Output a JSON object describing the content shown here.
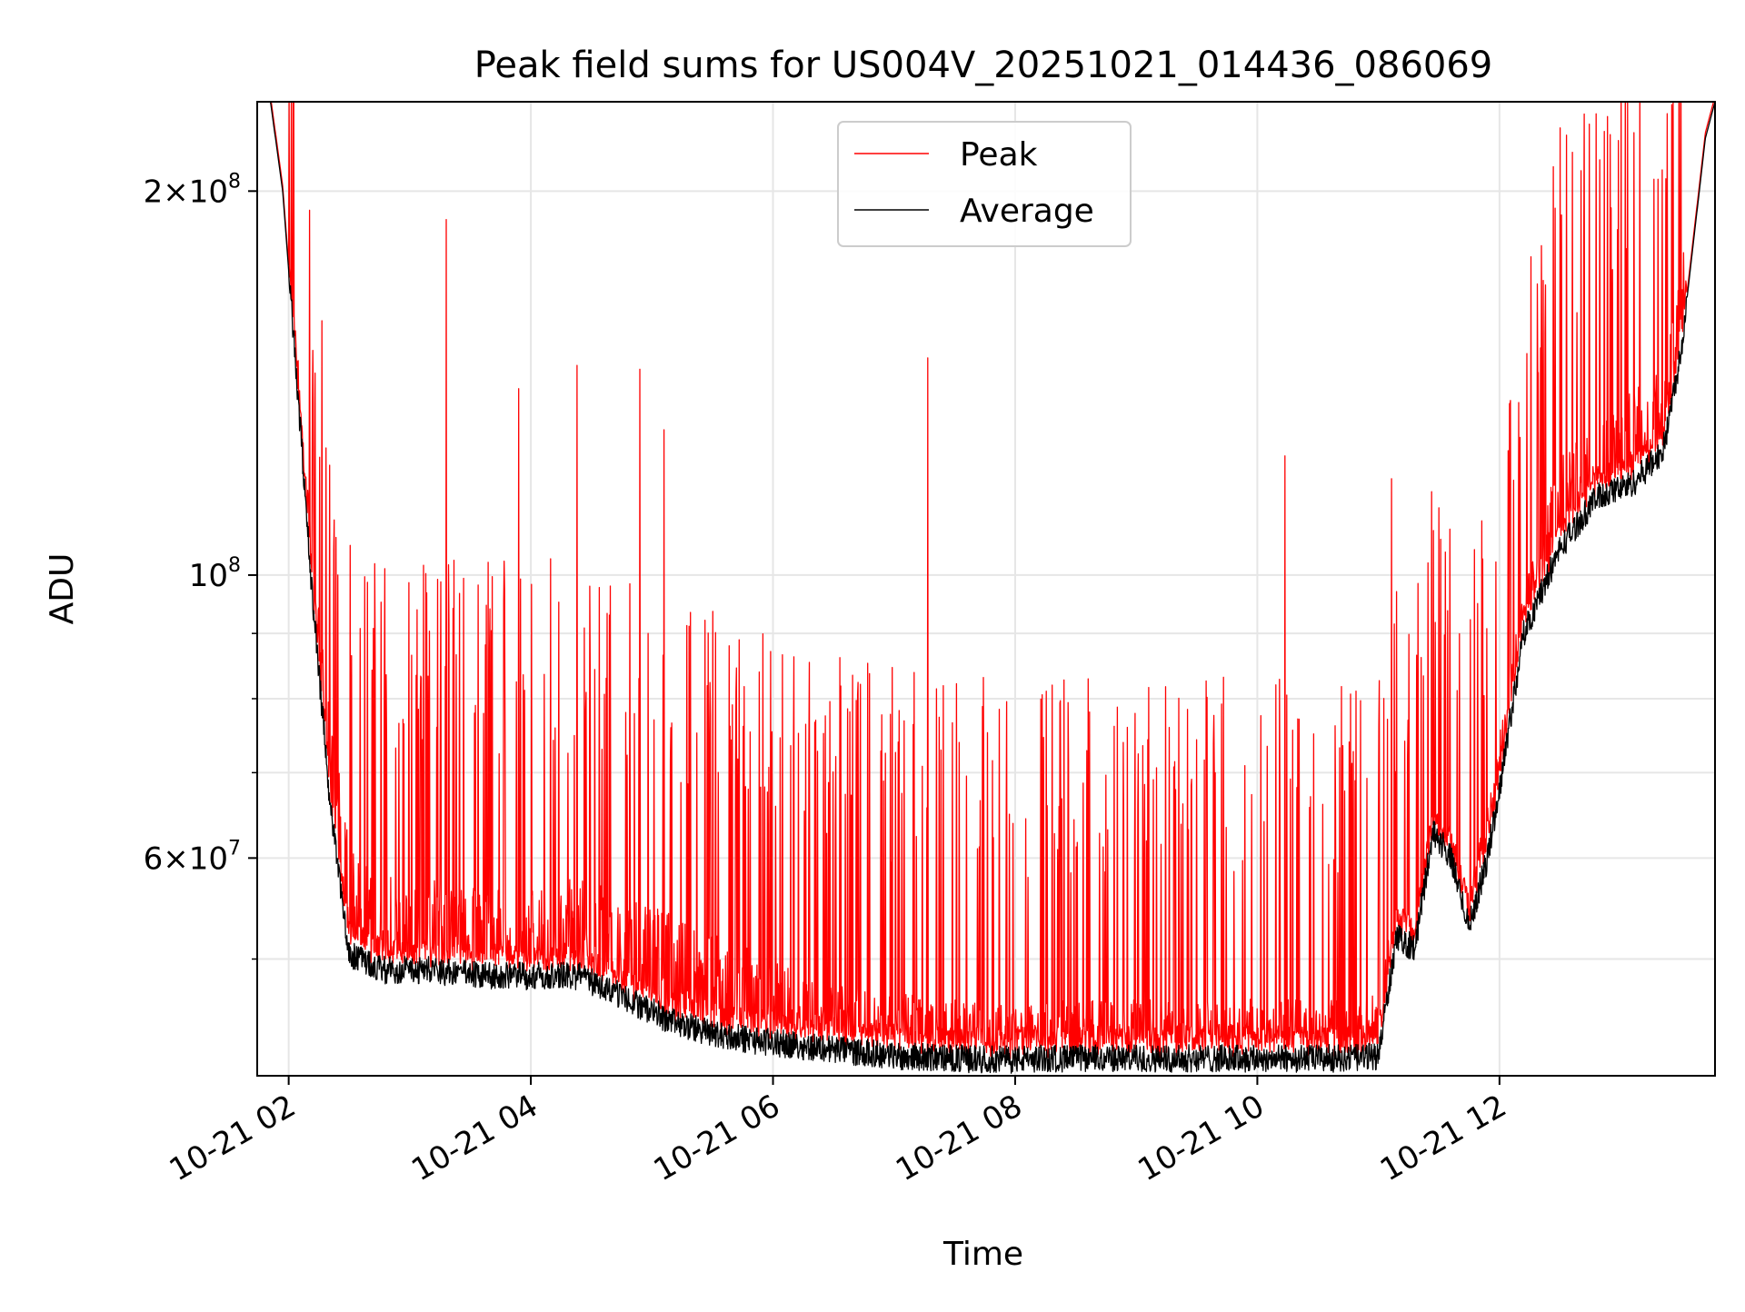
{
  "chart_data": {
    "type": "line",
    "title": "Peak field sums for US004V_20251021_014436_086069",
    "xlabel": "Time",
    "ylabel": "ADU",
    "y_scale": "log",
    "ylim": [
      40500000,
      235000000
    ],
    "xlim_hours": [
      1.74,
      13.78
    ],
    "grid": true,
    "legend_position": "top-center",
    "x_tick_labels": [
      "10-21 02",
      "10-21 04",
      "10-21 06",
      "10-21 08",
      "10-21 10",
      "10-21 12"
    ],
    "x_tick_values_hours": [
      2,
      4,
      6,
      8,
      10,
      12
    ],
    "y_tick_labels": [
      {
        "value": 200000000,
        "mantissa": "2",
        "exponent": "8"
      },
      {
        "value": 100000000,
        "mantissa": "",
        "exponent": "8"
      },
      {
        "value": 60000000,
        "mantissa": "6",
        "exponent": "7"
      }
    ],
    "y_minor_ticks": [
      50000000,
      70000000,
      80000000,
      90000000
    ],
    "colors": {
      "peak": "#ff0000",
      "average": "#000000",
      "grid": "#e6e6e6"
    },
    "series": [
      {
        "name": "Peak",
        "color": "#ff0000",
        "x_hours": [
          1.74,
          1.85,
          1.95,
          2.05,
          2.2,
          2.35,
          2.5,
          2.8,
          3.2,
          3.6,
          4.0,
          4.4,
          4.8,
          5.2,
          5.6,
          6.0,
          6.5,
          7.0,
          7.5,
          7.9,
          8.3,
          8.8,
          9.3,
          9.8,
          10.3,
          10.8,
          11.0,
          11.15,
          11.3,
          11.45,
          11.6,
          11.75,
          11.9,
          12.0,
          12.2,
          12.5,
          12.8,
          13.1,
          13.35,
          13.5,
          13.7,
          13.78
        ],
        "baseline_values": [
          235000000,
          235000000,
          200000000,
          160000000,
          105000000,
          78000000,
          62000000,
          58000000,
          58000000,
          57000000,
          57000000,
          58000000,
          56000000,
          54000000,
          52000000,
          50000000,
          48000000,
          47000000,
          46500000,
          46000000,
          46500000,
          46500000,
          46500000,
          46500000,
          46500000,
          46500000,
          47000000,
          56000000,
          54000000,
          66000000,
          62000000,
          57000000,
          66000000,
          75000000,
          98000000,
          125000000,
          130000000,
          140000000,
          145000000,
          175000000,
          230000000,
          235000000
        ],
        "notable_peaks": [
          {
            "x_hours": 3.3,
            "value": 190000000
          },
          {
            "x_hours": 4.38,
            "value": 146000000
          },
          {
            "x_hours": 7.28,
            "value": 148000000
          },
          {
            "x_hours": 10.23,
            "value": 124000000
          },
          {
            "x_hours": 11.11,
            "value": 119000000
          },
          {
            "x_hours": 2.2,
            "value": 150000000
          },
          {
            "x_hours": 3.9,
            "value": 140000000
          },
          {
            "x_hours": 4.9,
            "value": 145000000
          },
          {
            "x_hours": 5.1,
            "value": 130000000
          }
        ]
      },
      {
        "name": "Average",
        "color": "#000000",
        "x_hours": [
          1.74,
          1.85,
          1.95,
          2.05,
          2.2,
          2.35,
          2.5,
          2.8,
          3.2,
          3.6,
          4.0,
          4.4,
          4.8,
          5.2,
          5.6,
          6.0,
          6.5,
          7.0,
          7.5,
          7.9,
          8.3,
          8.8,
          9.3,
          9.8,
          10.3,
          10.8,
          11.0,
          11.15,
          11.3,
          11.45,
          11.6,
          11.75,
          11.9,
          12.0,
          12.2,
          12.5,
          12.8,
          13.1,
          13.35,
          13.5,
          13.7,
          13.78
        ],
        "values": [
          235000000,
          235000000,
          200000000,
          150000000,
          95000000,
          65000000,
          50500000,
          49000000,
          49000000,
          48500000,
          48500000,
          48500000,
          46500000,
          44500000,
          43500000,
          43000000,
          42500000,
          42000000,
          41800000,
          41700000,
          41800000,
          41800000,
          41800000,
          41800000,
          41800000,
          41800000,
          42000000,
          52000000,
          51000000,
          63000000,
          60000000,
          53000000,
          60000000,
          68000000,
          90000000,
          105000000,
          115000000,
          118000000,
          125000000,
          150000000,
          220000000,
          235000000
        ]
      }
    ]
  }
}
